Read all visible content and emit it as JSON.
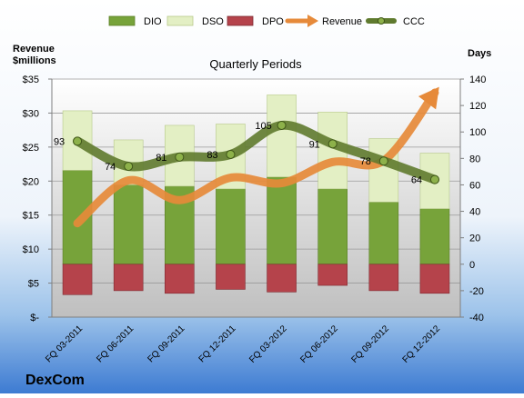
{
  "chart_data": {
    "type": "bar",
    "title": "Quarterly Periods",
    "company": "DexCom",
    "left_axis_label": [
      "Revenue",
      "$millions"
    ],
    "right_axis_label": "Days",
    "categories": [
      "FQ 03-2011",
      "FQ 06-2011",
      "FQ 09-2011",
      "FQ 12-2011",
      "FQ 03-2012",
      "FQ 06-2012",
      "FQ 09-2012",
      "FQ 12-2012"
    ],
    "left_axis": {
      "min": 0,
      "max": 35,
      "step": 5,
      "tick_labels": [
        "$-",
        "$5",
        "$10",
        "$15",
        "$20",
        "$25",
        "$30",
        "$35"
      ]
    },
    "right_axis": {
      "min": -40,
      "max": 140,
      "step": 20,
      "tick_labels": [
        "-40",
        "-20",
        "0",
        "20",
        "40",
        "60",
        "80",
        "100",
        "120",
        "140"
      ]
    },
    "legend": {
      "position": "top",
      "entries": [
        "DIO",
        "DSO",
        "DPO",
        "Revenue",
        "CCC"
      ]
    },
    "series": [
      {
        "name": "DIO",
        "axis": "right",
        "kind": "stacked-bar",
        "color": "#77a33a",
        "values": [
          71,
          60,
          59,
          57,
          66,
          57,
          47,
          42
        ]
      },
      {
        "name": "DSO",
        "axis": "right",
        "kind": "stacked-bar",
        "color": "#e3efc4",
        "values": [
          45,
          34,
          46,
          49,
          62,
          58,
          48,
          42
        ]
      },
      {
        "name": "DPO",
        "axis": "right",
        "kind": "negative-bar",
        "color": "#b5434b",
        "values": [
          -23,
          -20,
          -22,
          -19,
          -21,
          -16,
          -20,
          -22
        ]
      },
      {
        "name": "Revenue",
        "axis": "left",
        "kind": "line",
        "color": "#e68a3a",
        "values": [
          13.8,
          20.1,
          17.2,
          20.5,
          19.7,
          22.8,
          23.0,
          33.0
        ]
      },
      {
        "name": "CCC",
        "axis": "right",
        "kind": "line",
        "color": "#5f7a2e",
        "values": [
          93,
          74,
          81,
          83,
          105,
          91,
          78,
          64
        ]
      }
    ],
    "grid": true
  }
}
